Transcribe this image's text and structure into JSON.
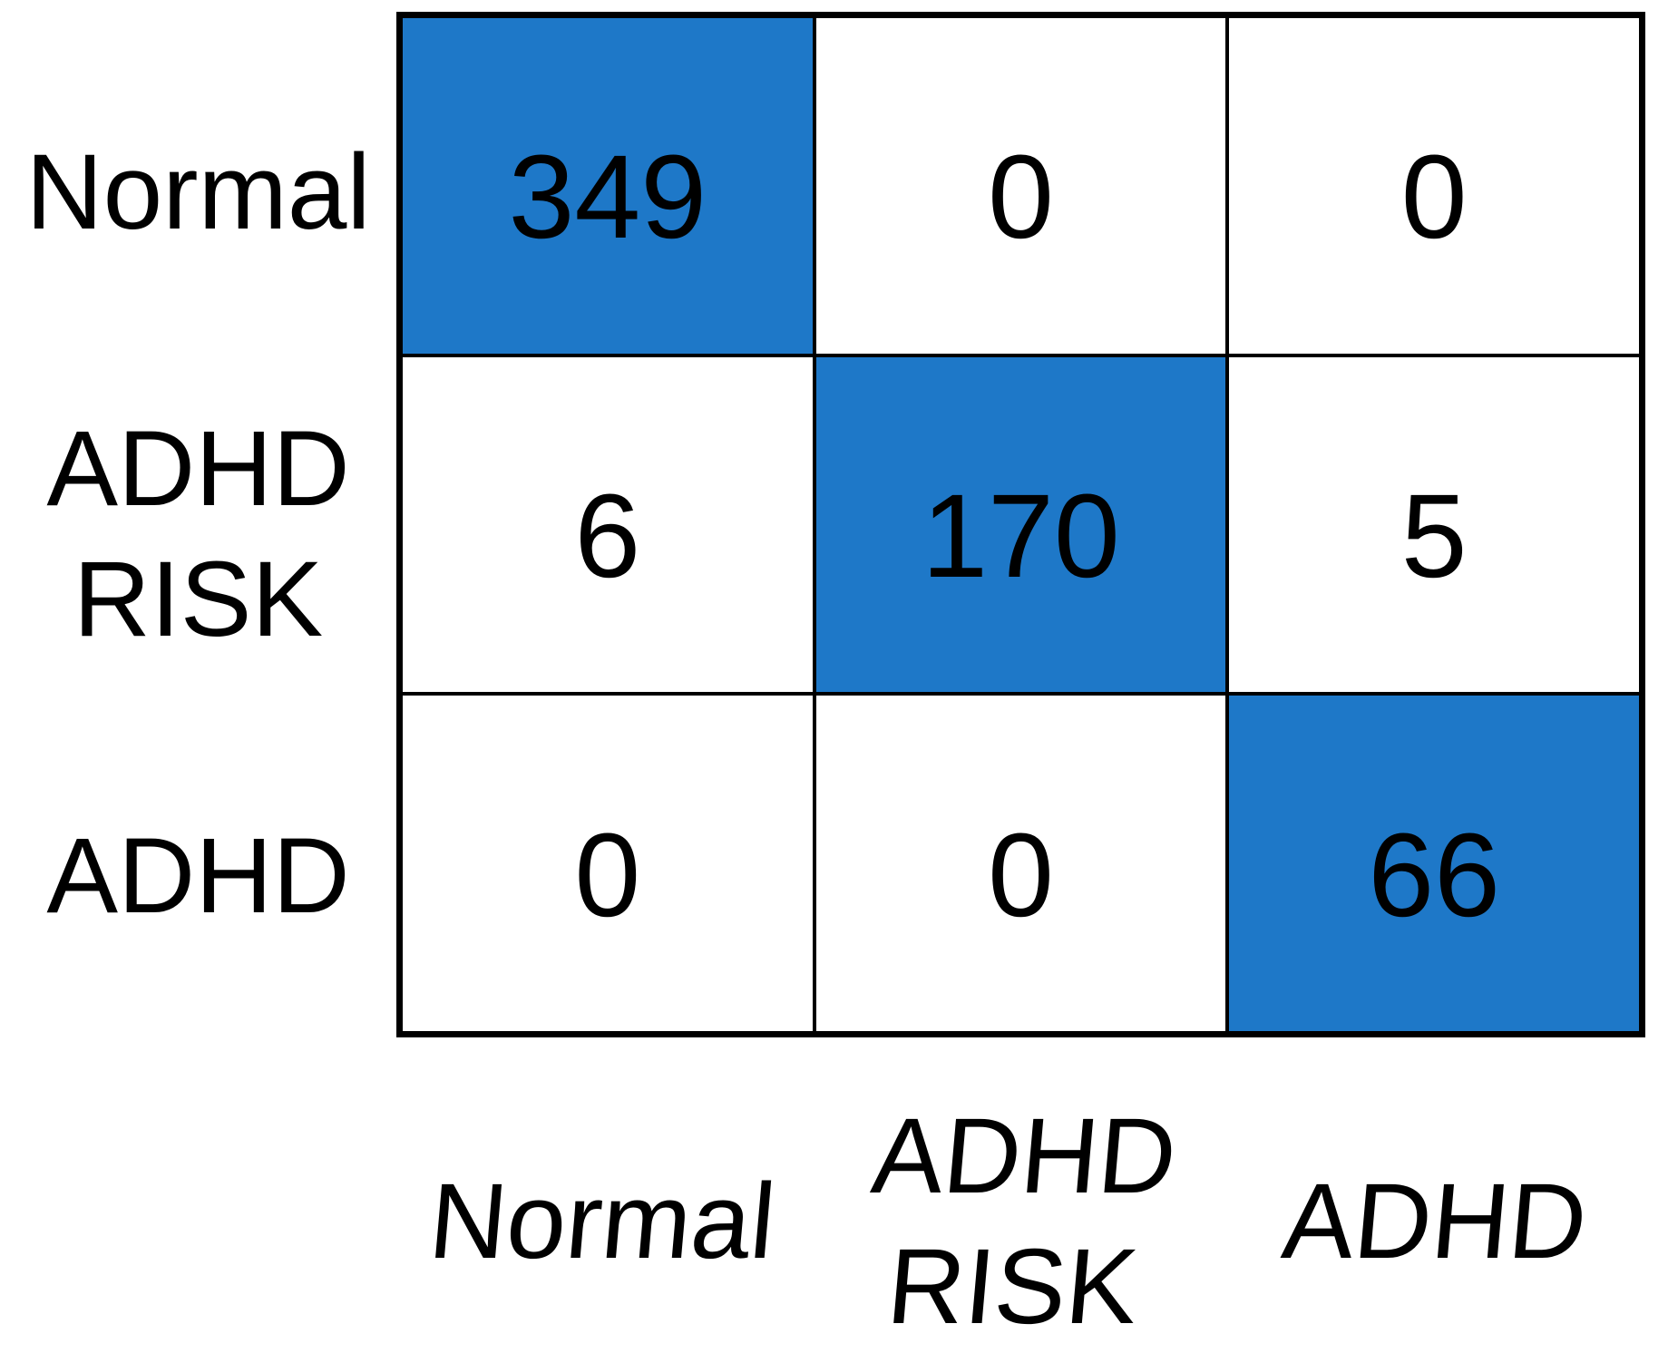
{
  "chart_data": {
    "type": "heatmap",
    "title": "",
    "rows": [
      "Normal",
      "ADHD RISK",
      "ADHD"
    ],
    "columns": [
      "Normal",
      "ADHD RISK",
      "ADHD"
    ],
    "values": [
      [
        349,
        0,
        0
      ],
      [
        6,
        170,
        5
      ],
      [
        0,
        0,
        66
      ]
    ],
    "highlighted_cells": "diagonal",
    "legend": "none",
    "grid": "on"
  },
  "colors": {
    "highlight": "#1e78c8",
    "cell_default": "#ffffff",
    "line": "#000000",
    "text": "#000000",
    "background": "#ffffff"
  },
  "matrix": {
    "row_labels": [
      {
        "label": "Normal"
      },
      {
        "label": "ADHD\nRISK"
      },
      {
        "label": "ADHD"
      }
    ],
    "col_labels": [
      {
        "label": "Normal"
      },
      {
        "label": "ADHD\nRISK"
      },
      {
        "label": "ADHD"
      }
    ],
    "cells": [
      {
        "value": "349",
        "highlight": true
      },
      {
        "value": "0",
        "highlight": false
      },
      {
        "value": "0",
        "highlight": false
      },
      {
        "value": "6",
        "highlight": false
      },
      {
        "value": "170",
        "highlight": true
      },
      {
        "value": "5",
        "highlight": false
      },
      {
        "value": "0",
        "highlight": false
      },
      {
        "value": "0",
        "highlight": false
      },
      {
        "value": "66",
        "highlight": true
      }
    ]
  }
}
